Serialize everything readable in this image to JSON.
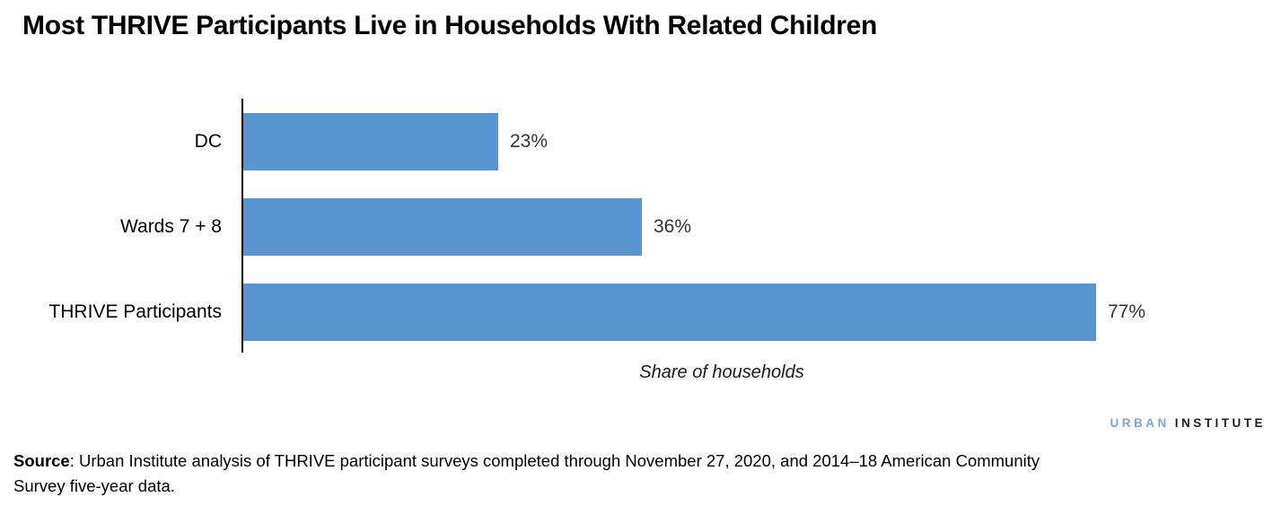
{
  "title": "Most THRIVE Participants Live in Households With Related Children",
  "chart_data": {
    "type": "bar",
    "orientation": "horizontal",
    "categories": [
      "DC",
      "Wards 7 + 8",
      "THRIVE Participants"
    ],
    "values": [
      23,
      36,
      77
    ],
    "value_labels": [
      "23%",
      "36%",
      "77%"
    ],
    "xlabel": "Share of households",
    "ylabel": "",
    "xlim": [
      0,
      80
    ],
    "grid": false,
    "legend": false,
    "bar_color": "#5894D0",
    "axis_color": "#000000"
  },
  "logo": {
    "urban": "URBAN",
    "institute": "INSTITUTE",
    "urban_color": "#77A7DB",
    "institute_color": "#1f1f1f"
  },
  "source": {
    "label": "Source",
    "line1": ": Urban Institute analysis of THRIVE participant surveys completed through November 27, 2020, and 2014–18 American Community",
    "line2": "Survey five-year data."
  }
}
